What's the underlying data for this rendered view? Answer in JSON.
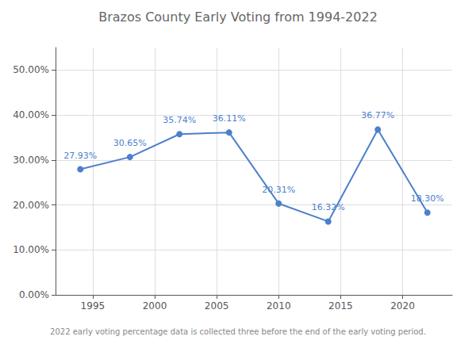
{
  "chart_data": {
    "type": "line",
    "title": "Brazos County Early Voting from 1994-2022",
    "footnote": "2022 early voting percentage data is collected three before the end of the early voting period.",
    "x": [
      1994,
      1998,
      2002,
      2006,
      2010,
      2014,
      2018,
      2022
    ],
    "values": [
      0.2793,
      0.3065,
      0.3574,
      0.3611,
      0.2031,
      0.1632,
      0.3677,
      0.183
    ],
    "value_labels": [
      "27.93%",
      "30.65%",
      "35.74%",
      "36.11%",
      "20.31%",
      "16.32%",
      "36.77%",
      "18.30%"
    ],
    "data_labels": true,
    "color": "#4d7fcc",
    "marker": "circle",
    "grid": true,
    "xlim": [
      1992,
      2024
    ],
    "xticks": [
      1995,
      2000,
      2005,
      2010,
      2015,
      2020
    ],
    "ylim": [
      0.0,
      0.55
    ],
    "yticks": [
      {
        "value": 0.0,
        "label": "0.00%"
      },
      {
        "value": 0.1,
        "label": "10.00%"
      },
      {
        "value": 0.2,
        "label": "20.00%"
      },
      {
        "value": 0.3,
        "label": "30.00%"
      },
      {
        "value": 0.4,
        "label": "40.00%"
      },
      {
        "value": 0.5,
        "label": "50.00%"
      }
    ]
  }
}
